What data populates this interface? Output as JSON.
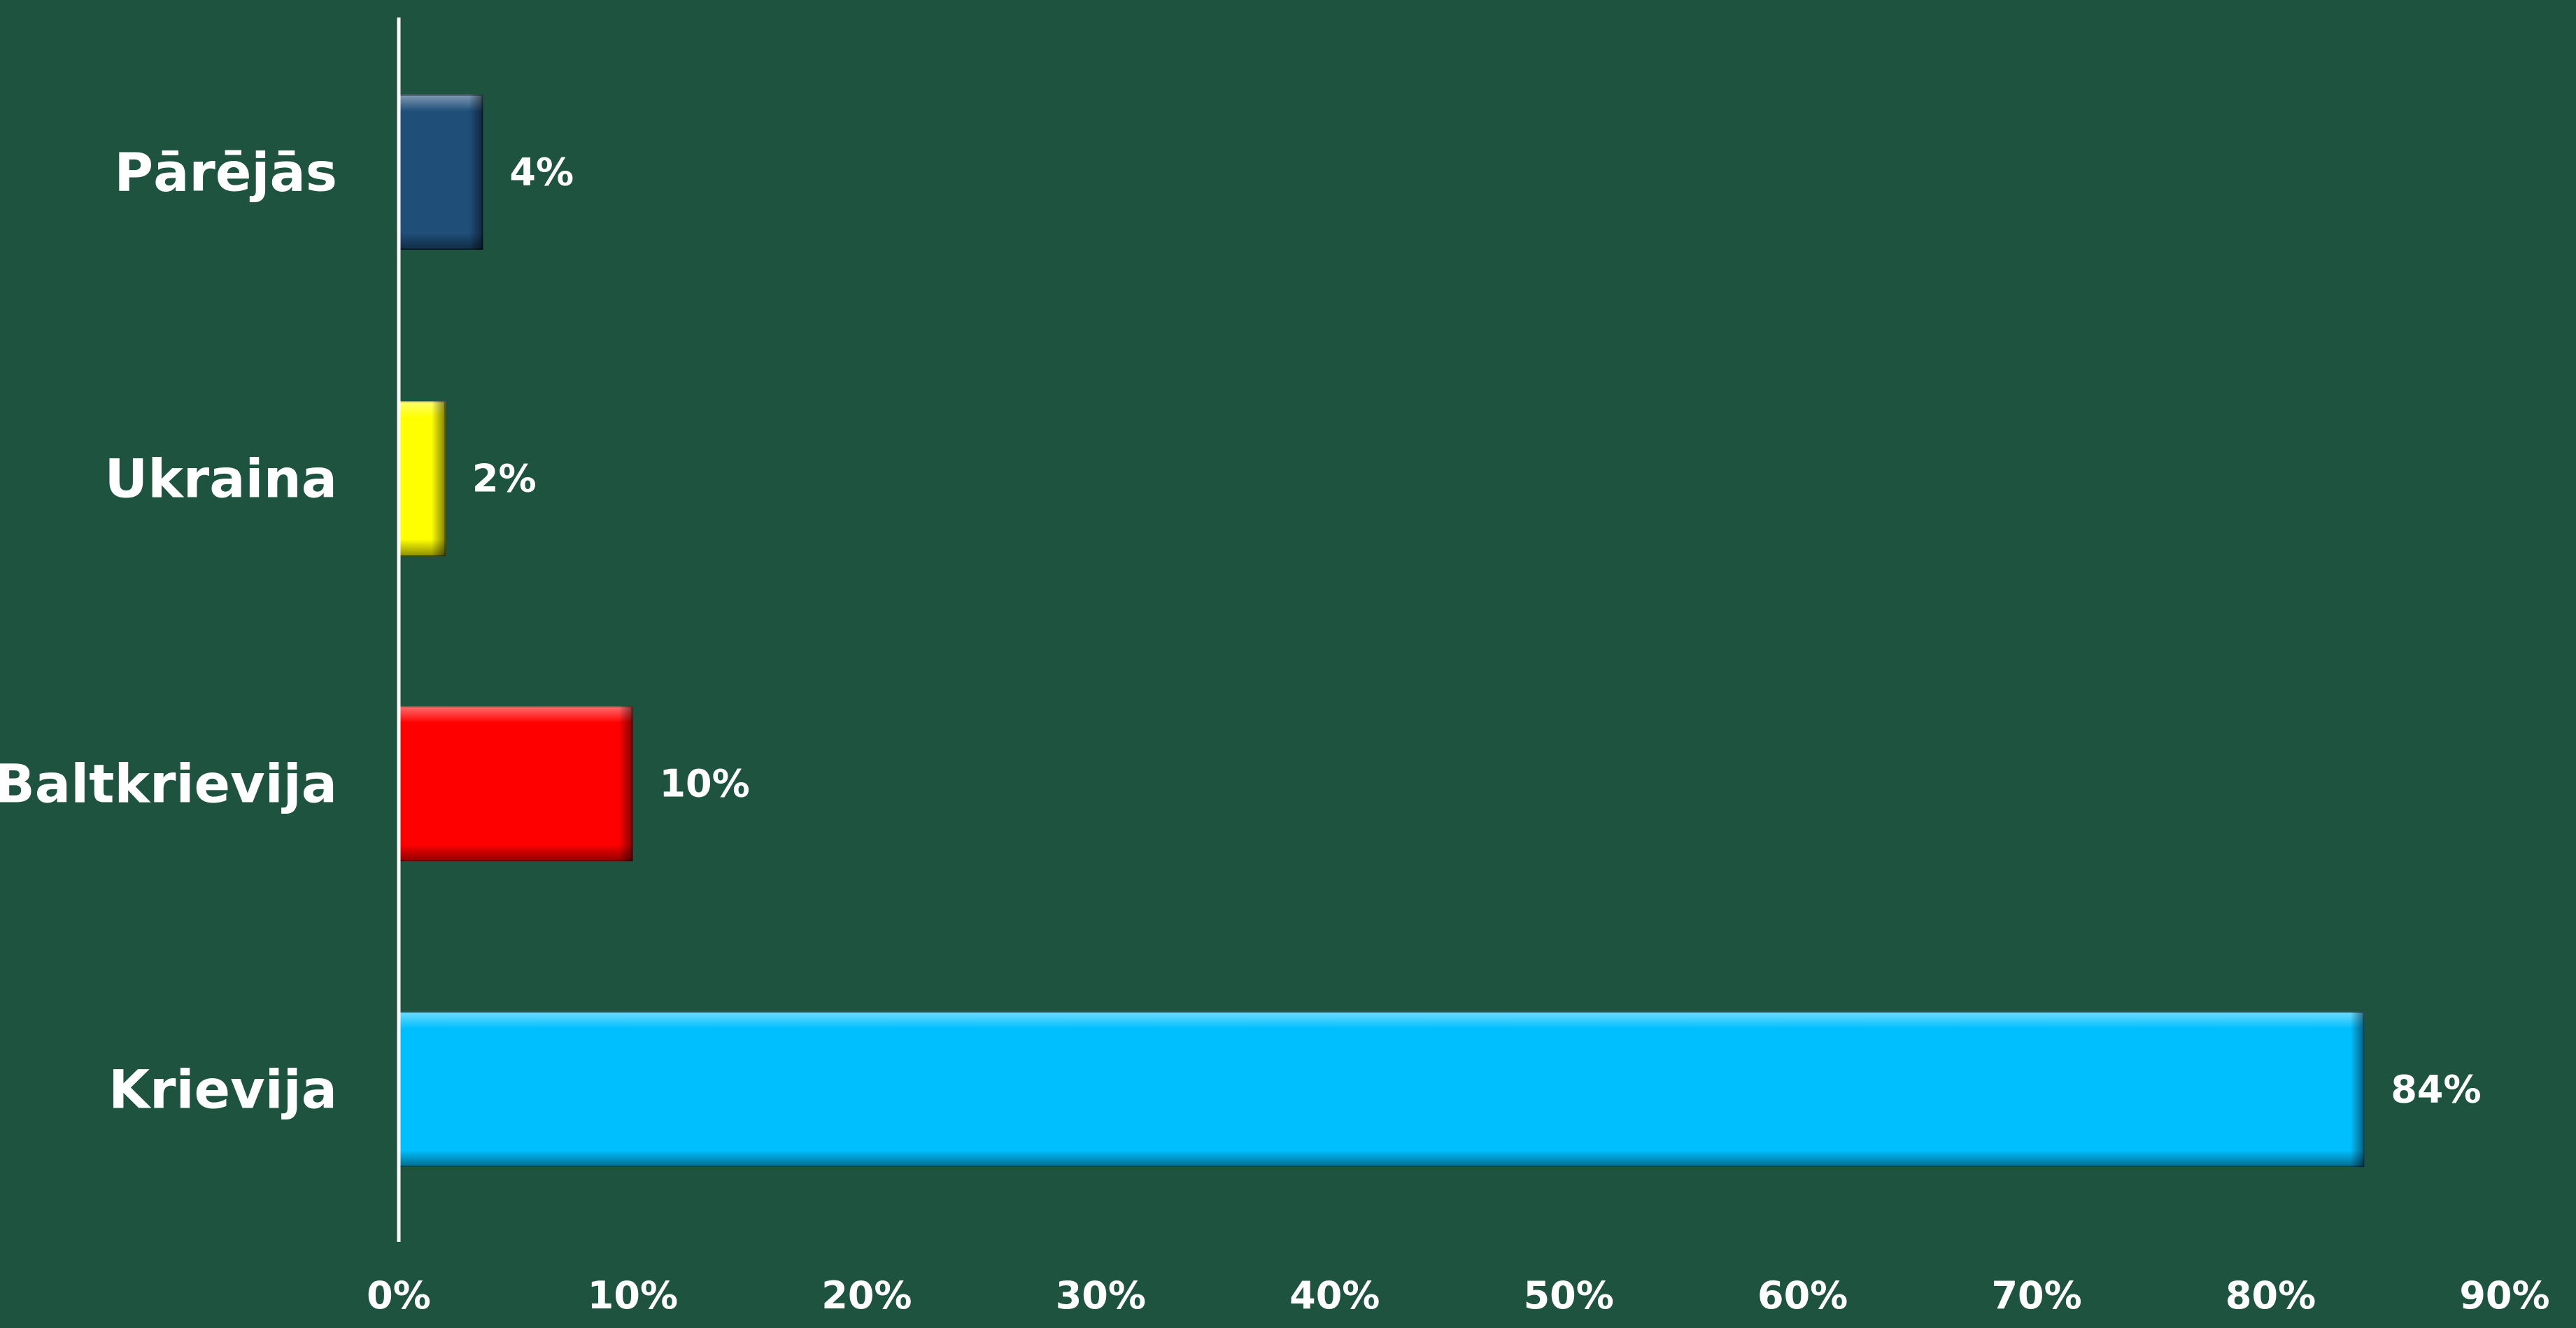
{
  "chart_data": {
    "type": "bar",
    "orientation": "horizontal",
    "title": "",
    "xlabel": "",
    "ylabel": "",
    "categories": [
      "Pārējās",
      "Ukraina",
      "Baltkrievija",
      "Krievija"
    ],
    "values": [
      0.036,
      0.02,
      0.1,
      0.84
    ],
    "value_labels": [
      "4%",
      "2%",
      "10%",
      "84%"
    ],
    "bar_colors": [
      "#1f4e79",
      "#ffff00",
      "#ff0000",
      "#00bfff"
    ],
    "xlim": [
      0,
      0.9
    ],
    "x_ticks": [
      0,
      0.1,
      0.2,
      0.3,
      0.4,
      0.5,
      0.6,
      0.7,
      0.8,
      0.9
    ],
    "x_tick_labels": [
      "0%",
      "10%",
      "20%",
      "30%",
      "40%",
      "50%",
      "60%",
      "70%",
      "80%",
      "90%"
    ],
    "grid": false,
    "legend": "none",
    "background_color": "#1e5340",
    "axis_color": "#ffffff"
  }
}
